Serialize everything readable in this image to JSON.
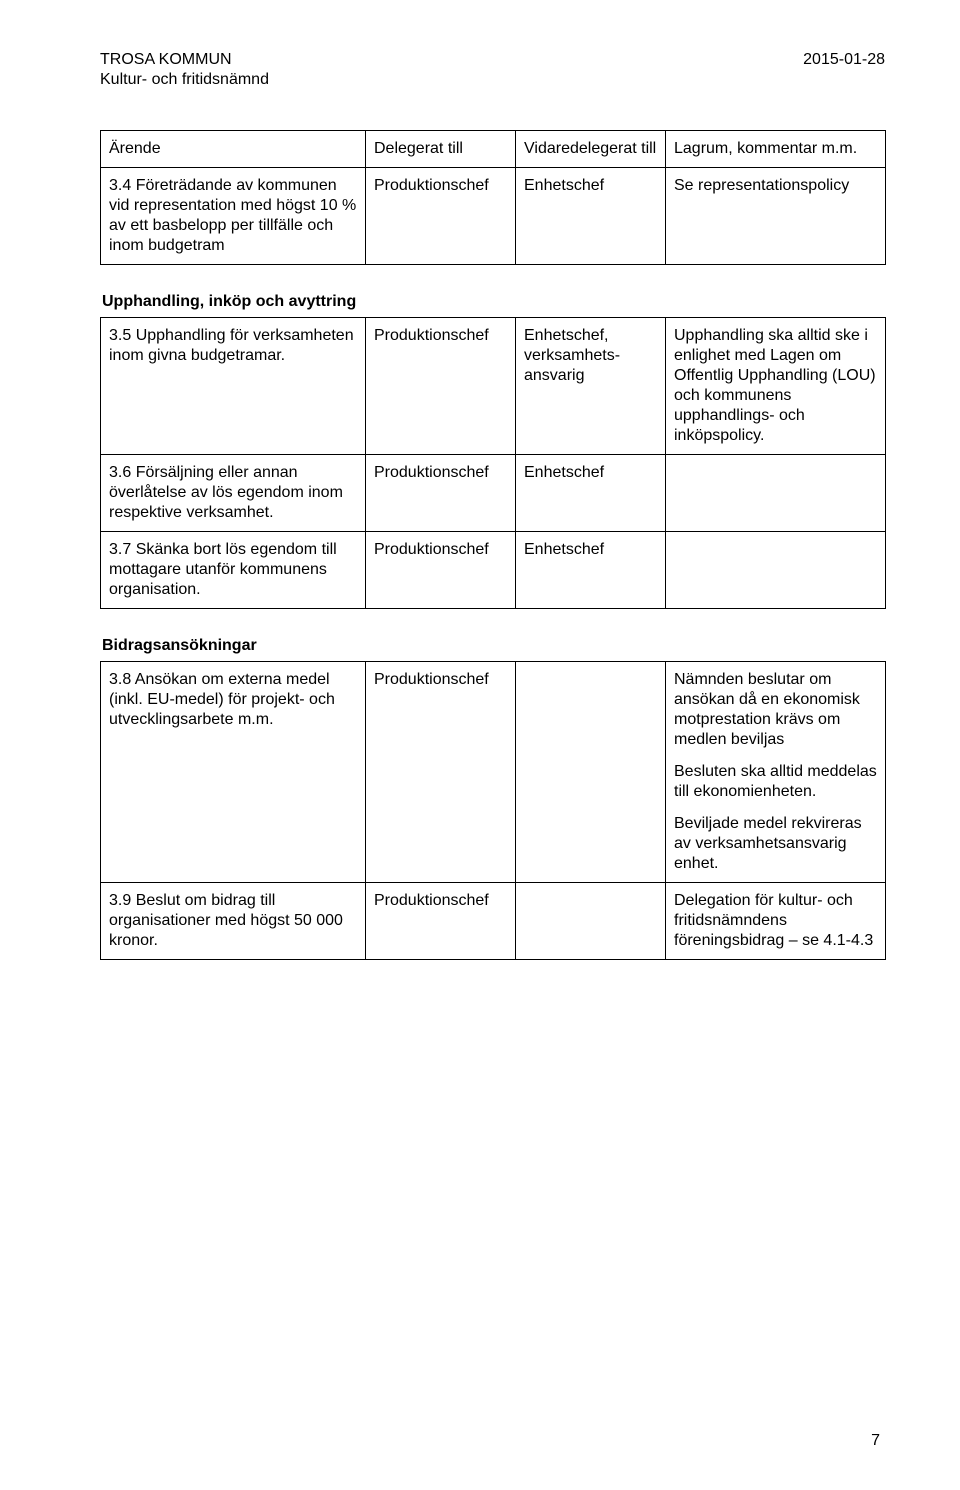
{
  "header": {
    "org_line1": "TROSA KOMMUN",
    "org_line2": "Kultur- och fritidsnämnd",
    "date": "2015-01-28"
  },
  "columns": {
    "arende": "Ärende",
    "delegerat": "Delegerat till",
    "vidaredelegerat": "Vidaredelegerat till",
    "lagrum": "Lagrum, kommentar m.m."
  },
  "rows": {
    "r34": {
      "arende": "3.4 Företrädande av kommunen vid representation med högst 10 % av ett basbelopp per tillfälle och inom budgetram",
      "delegerat": "Produktionschef",
      "vidare": "Enhetschef",
      "lagrum": "Se representationspolicy"
    }
  },
  "section1_heading": "Upphandling, inköp och avyttring",
  "section1_rows": {
    "r35": {
      "arende": "3.5 Upphandling för verksamheten inom givna budgetramar.",
      "delegerat": "Produktionschef",
      "vidare": "Enhetschef, verksamhets-ansvarig",
      "lagrum": "Upphandling ska alltid ske i enlighet med Lagen om Offentlig Upphandling (LOU) och kommunens upphandlings- och inköpspolicy."
    },
    "r36": {
      "arende": "3.6 Försäljning eller annan överlåtelse av lös egendom inom respektive verksamhet.",
      "delegerat": "Produktionschef",
      "vidare": "Enhetschef",
      "lagrum": ""
    },
    "r37": {
      "arende": "3.7 Skänka bort lös egendom till mottagare utanför kommunens organisation.",
      "delegerat": "Produktionschef",
      "vidare": "Enhetschef",
      "lagrum": ""
    }
  },
  "section2_heading": "Bidragsansökningar",
  "section2_rows": {
    "r38": {
      "arende": "3.8 Ansökan om externa medel (inkl. EU-medel) för projekt- och utvecklingsarbete m.m.",
      "delegerat": "Produktionschef",
      "vidare": "",
      "lagrum_p1": "Nämnden beslutar om ansökan då en ekonomisk motprestation krävs om medlen beviljas",
      "lagrum_p2": "Besluten ska alltid meddelas till ekonomienheten.",
      "lagrum_p3": "Beviljade medel rekvireras av verksamhetsansvarig enhet."
    },
    "r39": {
      "arende": "3.9 Beslut om bidrag till organisationer med högst 50 000 kronor.",
      "delegerat": "Produktionschef",
      "vidare": "",
      "lagrum": "Delegation för kultur- och fritidsnämndens föreningsbidrag – se 4.1-4.3"
    }
  },
  "page_number": "7"
}
